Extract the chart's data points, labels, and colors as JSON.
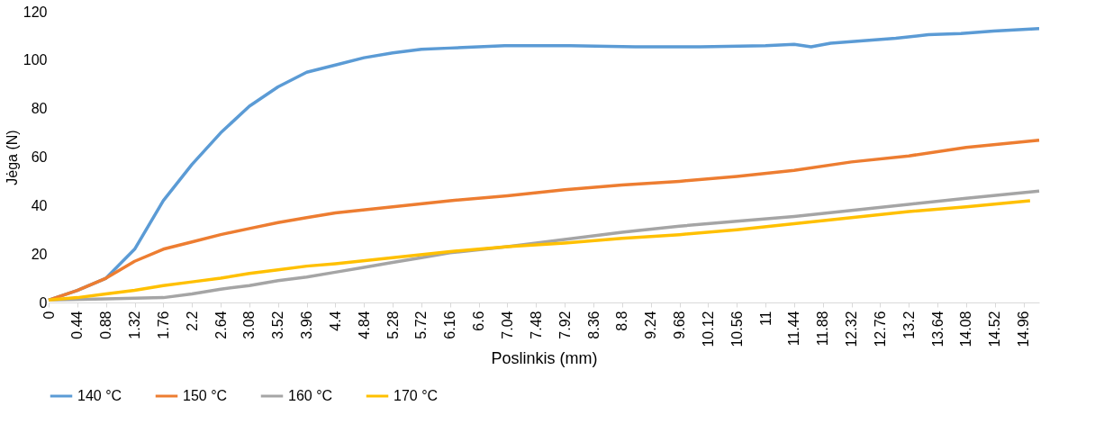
{
  "chart_data": {
    "type": "line",
    "xlabel": "Poslinkis (mm)",
    "ylabel": "Jėga (N)",
    "xlim": [
      0,
      15.2
    ],
    "ylim": [
      0,
      120
    ],
    "xticks": [
      0,
      0.44,
      0.88,
      1.32,
      1.76,
      2.2,
      2.64,
      3.08,
      3.52,
      3.96,
      4.4,
      4.84,
      5.28,
      5.72,
      6.16,
      6.6,
      7.04,
      7.48,
      7.92,
      8.36,
      8.8,
      9.24,
      9.68,
      10.12,
      10.56,
      11,
      11.44,
      11.88,
      12.32,
      12.76,
      13.2,
      13.64,
      14.08,
      14.52,
      14.96
    ],
    "yticks": [
      0,
      20,
      40,
      60,
      80,
      100,
      120
    ],
    "grid": false,
    "legend": "bottom",
    "line_style": "solid",
    "marker": "none",
    "series": [
      {
        "name": "140 °C",
        "color": "#5b9bd5",
        "x": [
          0,
          0.44,
          0.88,
          1.32,
          1.76,
          2.2,
          2.64,
          3.08,
          3.52,
          3.96,
          4.4,
          4.84,
          5.28,
          5.72,
          6.16,
          7,
          8,
          9,
          10,
          11,
          11.44,
          11.7,
          12,
          13,
          13.5,
          14,
          14.5,
          15.2
        ],
        "values": [
          1,
          5,
          10,
          22,
          42,
          57,
          70,
          81,
          89,
          95,
          98,
          101,
          103,
          104.5,
          105,
          106,
          106,
          105.5,
          105.5,
          106,
          106.5,
          105.5,
          107,
          109,
          110.5,
          111,
          112,
          113
        ]
      },
      {
        "name": "150 °C",
        "color": "#ed7d31",
        "x": [
          0,
          0.44,
          0.88,
          1.32,
          1.76,
          2.2,
          2.64,
          3.08,
          3.52,
          3.96,
          4.4,
          5.28,
          6.16,
          7.04,
          7.92,
          8.8,
          9.68,
          10.56,
          11.44,
          12.32,
          13.2,
          14.08,
          15.2
        ],
        "values": [
          1,
          5,
          10,
          17,
          22,
          25,
          28,
          30.5,
          33,
          35,
          37,
          39.5,
          42,
          44,
          46.5,
          48.5,
          50,
          52,
          54.5,
          58,
          60.5,
          64,
          67
        ]
      },
      {
        "name": "160 °C",
        "color": "#a5a5a5",
        "x": [
          0,
          0.88,
          1.76,
          2.2,
          2.64,
          3.08,
          3.52,
          3.96,
          4.4,
          4.84,
          5.28,
          5.72,
          6.16,
          7.04,
          7.92,
          8.8,
          9.68,
          10.56,
          11.44,
          12.32,
          13.2,
          14.08,
          15.2
        ],
        "values": [
          1,
          1.5,
          2,
          3.5,
          5.5,
          7,
          9,
          10.5,
          12.5,
          14.5,
          16.5,
          18.5,
          20.5,
          23,
          26,
          29,
          31.5,
          33.5,
          35.5,
          38,
          40.5,
          43,
          46
        ]
      },
      {
        "name": "170 °C",
        "color": "#ffc000",
        "x": [
          0,
          0.44,
          0.88,
          1.32,
          1.76,
          2.2,
          2.64,
          3.08,
          3.52,
          3.96,
          4.4,
          5.28,
          6.16,
          7.04,
          7.92,
          8.8,
          9.68,
          10.56,
          11.44,
          12.32,
          13.2,
          14.08,
          15.06
        ],
        "values": [
          1,
          2,
          3.5,
          5,
          7,
          8.5,
          10,
          12,
          13.5,
          15,
          16,
          18.5,
          21,
          23,
          24.5,
          26.5,
          28,
          30,
          32.5,
          35,
          37.5,
          39.5,
          42
        ]
      }
    ]
  }
}
